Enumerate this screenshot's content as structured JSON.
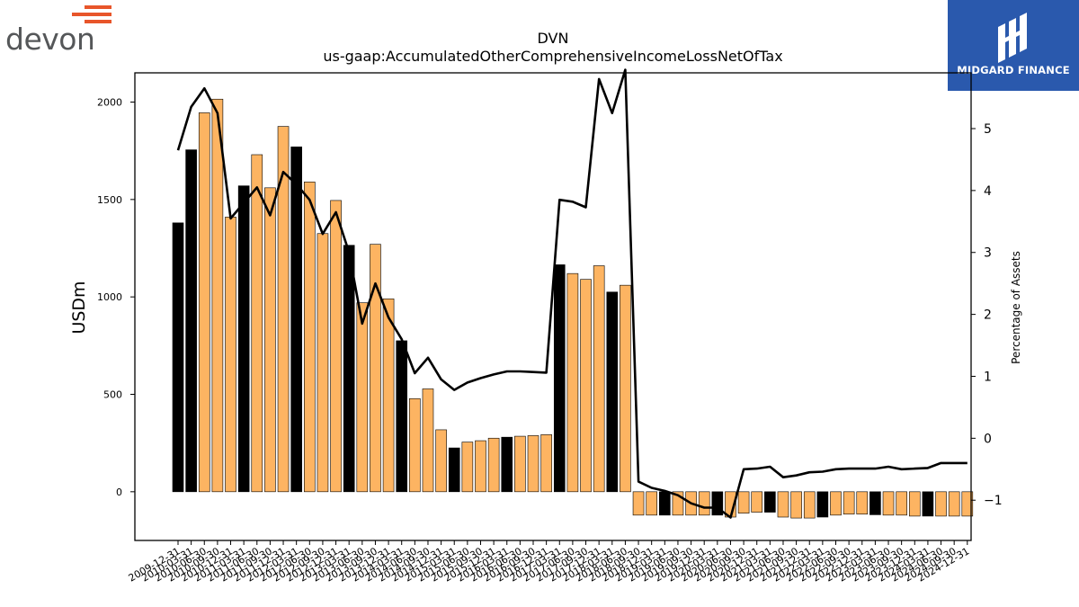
{
  "brand_left": {
    "name": "devon",
    "accent_color": "#e8552a",
    "text_color": "#555759"
  },
  "brand_right": {
    "name": "MIDGARD FINANCE",
    "bg_color": "#2a59ad"
  },
  "chart_data": {
    "type": "bar",
    "title": "DVN",
    "subtitle": "us-gaap:AccumulatedOtherComprehensiveIncomeLossNetOfTax",
    "ylabel": "USDm",
    "y2label": "Percentage of Assets",
    "ylim": [
      -250,
      2150
    ],
    "y2lim": [
      -1.65,
      5.9
    ],
    "yticks": [
      0,
      500,
      1000,
      1500,
      2000
    ],
    "y2ticks": [
      -1,
      0,
      1,
      2,
      3,
      4,
      5
    ],
    "colors": {
      "annual_bar": "#000000",
      "quarter_bar": "#fdb462",
      "line": "#000000"
    },
    "categories": [
      "2009-12-31",
      "2010-03-31",
      "2010-06-30",
      "2010-09-30",
      "2010-12-31",
      "2011-03-31",
      "2011-06-30",
      "2011-09-30",
      "2011-12-31",
      "2012-03-31",
      "2012-06-30",
      "2012-09-30",
      "2012-12-31",
      "2013-03-31",
      "2013-06-30",
      "2013-09-30",
      "2013-12-31",
      "2014-03-31",
      "2014-06-30",
      "2014-09-30",
      "2014-12-31",
      "2015-03-31",
      "2015-06-30",
      "2015-09-30",
      "2015-12-31",
      "2016-03-31",
      "2016-06-30",
      "2016-09-30",
      "2016-12-31",
      "2017-03-31",
      "2017-06-30",
      "2017-09-30",
      "2017-12-31",
      "2018-03-31",
      "2018-06-30",
      "2018-09-30",
      "2018-12-31",
      "2019-03-31",
      "2019-06-30",
      "2019-09-30",
      "2019-12-31",
      "2020-03-31",
      "2020-06-30",
      "2020-09-30",
      "2020-12-31",
      "2021-03-31",
      "2021-06-30",
      "2021-09-30",
      "2021-12-31",
      "2022-03-31",
      "2022-06-30",
      "2022-09-30",
      "2022-12-31",
      "2023-03-31",
      "2023-06-30",
      "2023-09-30",
      "2023-12-31",
      "2024-03-31",
      "2024-06-30",
      "2024-09-30",
      "2024-12-31"
    ],
    "tick_labels": [
      "2009-12-31",
      "2010-03-31",
      "2010-06-30",
      "2010-09-30",
      "2010-12-31",
      "2011-03-31",
      "2011-06-30",
      "2011-09-30",
      "2011-12-31",
      "2012-03-31",
      "2012-06-30",
      "2012-09-30",
      "2012-12-31",
      "2013-03-31",
      "2013-06-30",
      "2013-09-30",
      "2013-12-31",
      "2014-03-31",
      "2014-06-30",
      "2014-09-30",
      "2014-12-31",
      "2015-03-31",
      "2015-06-30",
      "2015-09-30",
      "2015-12-31",
      "2016-03-31",
      "2016-06-30",
      "2016-09-30",
      "2016-12-31",
      "2017-03-31",
      "2017-06-30",
      "2017-09-30",
      "2017-12-31",
      "2018-03-31",
      "2018-06-30",
      "2018-09-30",
      "2018-12-31",
      "2019-03-31",
      "2019-06-30",
      "2019-09-30",
      "2019-12-31",
      "2020-03-31",
      "2020-06-30",
      "2020-09-30",
      "2020-12-31",
      "2021-03-31",
      "2021-06-30",
      "2021-09-30",
      "2021-12-31",
      "2022-03-31",
      "2022-06-30",
      "2022-09-30",
      "2022-12-31",
      "2023-03-31",
      "2023-06-30",
      "2023-09-30",
      "2023-12-31",
      "2024-03-31",
      "2024-06-30",
      "2024-09-30",
      "2024-12-31"
    ],
    "values": [
      1380,
      1755,
      1945,
      2015,
      1410,
      1570,
      1730,
      1560,
      1875,
      1770,
      1590,
      1325,
      1495,
      1265,
      970,
      1270,
      990,
      775,
      478,
      528,
      318,
      225,
      255,
      262,
      275,
      280,
      285,
      288,
      293,
      1165,
      1120,
      1090,
      1160,
      1025,
      1060,
      -120,
      -120,
      -120,
      -120,
      -120,
      -120,
      -120,
      -130,
      -110,
      -105,
      -105,
      -130,
      -135,
      -135,
      -130,
      -120,
      -115,
      -115,
      -118,
      -120,
      -120,
      -125,
      -125,
      -125,
      -125,
      -125
    ],
    "annual_flags": [
      1,
      1,
      0,
      0,
      0,
      1,
      0,
      0,
      0,
      1,
      0,
      0,
      0,
      1,
      0,
      0,
      0,
      1,
      0,
      0,
      0,
      1,
      0,
      0,
      0,
      1,
      0,
      0,
      0,
      1,
      0,
      0,
      0,
      1,
      0,
      0,
      0,
      1,
      0,
      0,
      0,
      1,
      0,
      0,
      0,
      1,
      0,
      0,
      0,
      1,
      0,
      0,
      0,
      1,
      0,
      0,
      0,
      1,
      0,
      0,
      0
    ],
    "pct_assets": [
      4.65,
      5.35,
      5.65,
      5.25,
      3.55,
      3.8,
      4.05,
      3.6,
      4.3,
      4.1,
      3.85,
      3.3,
      3.65,
      3.0,
      1.85,
      2.5,
      1.95,
      1.6,
      1.05,
      1.3,
      0.95,
      0.78,
      0.9,
      0.97,
      1.03,
      1.08,
      1.08,
      1.07,
      1.06,
      3.85,
      3.82,
      3.73,
      5.8,
      5.25,
      5.95,
      -0.7,
      -0.8,
      -0.85,
      -0.92,
      -1.05,
      -1.12,
      -1.12,
      -1.28,
      -0.5,
      -0.49,
      -0.46,
      -0.63,
      -0.6,
      -0.55,
      -0.54,
      -0.5,
      -0.49,
      -0.49,
      -0.49,
      -0.46,
      -0.5,
      -0.49,
      -0.48,
      -0.4,
      -0.4,
      -0.4
    ]
  }
}
